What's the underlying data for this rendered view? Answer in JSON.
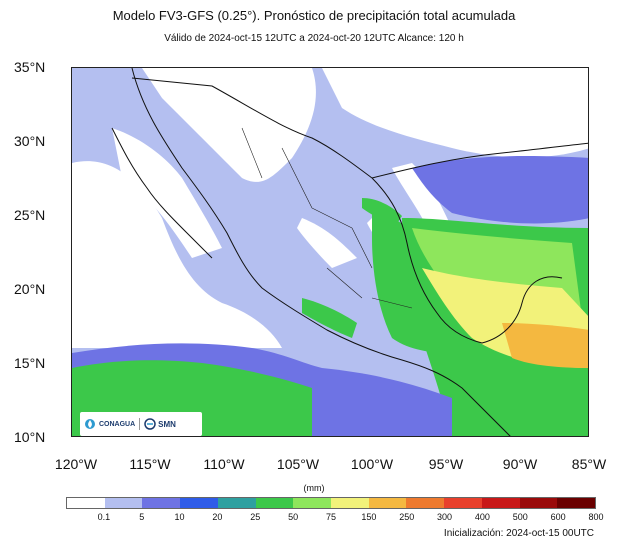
{
  "header": {
    "title": "Modelo FV3-GFS (0.25°). Pronóstico de precipitación total acumulada",
    "subtitle": "Válido de 2024-oct-15 12UTC a 2024-oct-20 12UTC    Alcance: 120 h"
  },
  "map": {
    "lat_ticks": [
      "35°N",
      "30°N",
      "25°N",
      "20°N",
      "15°N",
      "10°N"
    ],
    "lon_ticks": [
      "120°W",
      "115°W",
      "110°W",
      "105°W",
      "100°W",
      "95°W",
      "90°W",
      "85°W"
    ],
    "extent": {
      "lon": [
        -120,
        -85
      ],
      "lat": [
        10,
        35
      ]
    }
  },
  "colorbar": {
    "units": "(mm)",
    "labels": [
      "0.1",
      "5",
      "10",
      "20",
      "25",
      "50",
      "75",
      "150",
      "250",
      "300",
      "400",
      "500",
      "600",
      "800"
    ],
    "colors": [
      "#ffffff",
      "#b4bff0",
      "#6e73e4",
      "#2f5ce8",
      "#2ea0a0",
      "#3cc84a",
      "#8ee65c",
      "#f2f27a",
      "#f4b840",
      "#ee7a2e",
      "#e8402c",
      "#c81818",
      "#9a0a0a",
      "#6a0000"
    ]
  },
  "footer": {
    "init": "Inicialización: 2024-oct-15 00UTC"
  },
  "logos": {
    "conagua": "CONAGUA",
    "smn": "SMN"
  }
}
